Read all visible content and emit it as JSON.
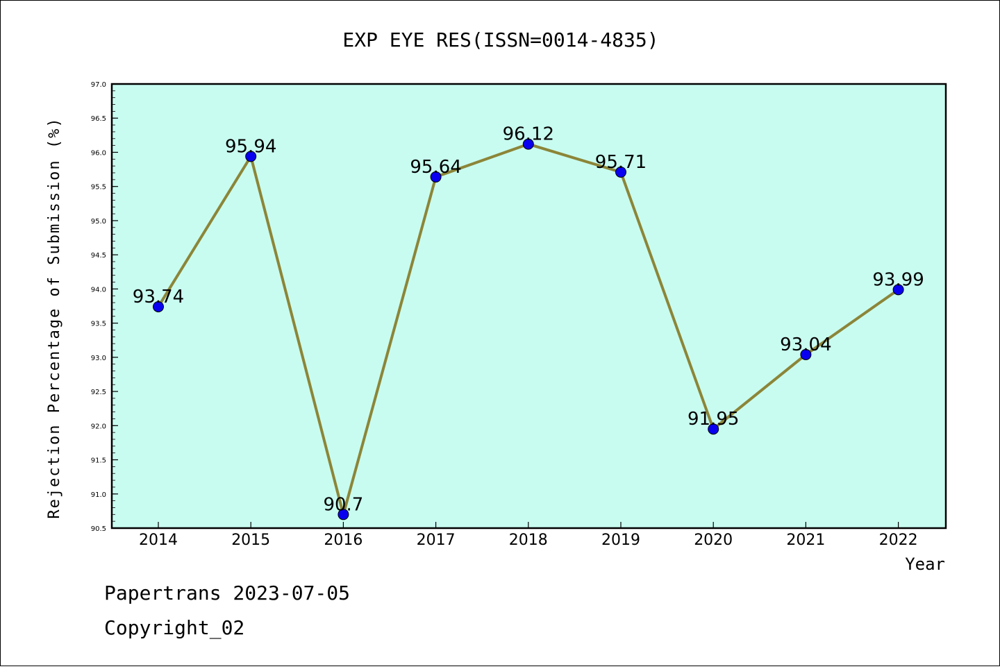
{
  "chart_data": {
    "type": "line",
    "title": "EXP EYE RES(ISSN=0014-4835)",
    "xlabel": "Year",
    "ylabel": "Rejection Percentage of Submission (%)",
    "categories": [
      "2014",
      "2015",
      "2016",
      "2017",
      "2018",
      "2019",
      "2020",
      "2021",
      "2022"
    ],
    "values": [
      93.74,
      95.94,
      90.7,
      95.64,
      96.12,
      95.71,
      91.95,
      93.04,
      93.99
    ],
    "labels": [
      "93.74",
      "95.94",
      "90.7",
      "95.64",
      "96.12",
      "95.71",
      "91.95",
      "93.04",
      "93.99"
    ],
    "ylim": [
      90.5,
      97.0
    ],
    "yticks": [
      "90.5",
      "91.0",
      "91.5",
      "92.0",
      "92.5",
      "93.0",
      "93.5",
      "94.0",
      "94.5",
      "95.0",
      "95.5",
      "96.0",
      "96.5",
      "97.0"
    ],
    "grid": false,
    "colors": {
      "plot_background": "#c8fcf0",
      "line": "#8c8538",
      "marker": "#0a00f0"
    }
  },
  "footer": {
    "source": "Papertrans 2023-07-05",
    "copyright": "Copyright_02"
  }
}
